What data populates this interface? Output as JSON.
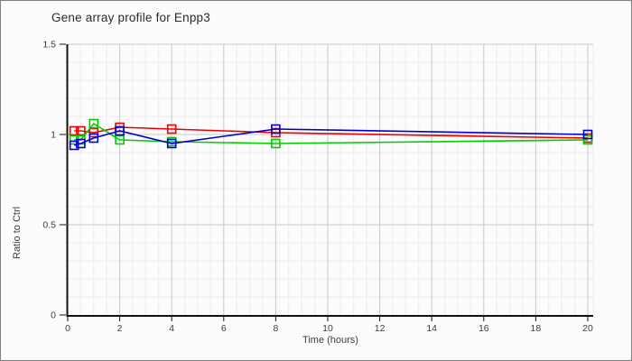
{
  "window": {
    "title": "Gene array profile for Enpp3"
  },
  "labels": {
    "title": "Gene array profile for Enpp3",
    "xlabel": "Time (hours)",
    "ylabel": "Ratio to Ctrl"
  },
  "chart_data": {
    "type": "line",
    "title": "Gene array profile for Enpp3",
    "xlabel": "Time (hours)",
    "ylabel": "Ratio to Ctrl",
    "xlim": [
      0,
      20.2
    ],
    "ylim": [
      0,
      1.5
    ],
    "x_major_ticks": [
      "0",
      "2",
      "4",
      "6",
      "8",
      "10",
      "12",
      "14",
      "16",
      "18",
      "20"
    ],
    "x_major_values": [
      0,
      2,
      4,
      6,
      8,
      10,
      12,
      14,
      16,
      18,
      20
    ],
    "x_minor_step": 0.5,
    "y_major_ticks": [
      "0",
      "0.5",
      "1",
      "1.5"
    ],
    "y_major_values": [
      0,
      0.5,
      1,
      1.5
    ],
    "y_minor_step": 0.1,
    "grid": true,
    "legend_position": "none",
    "marker": "open-square",
    "x": [
      0.25,
      0.5,
      1,
      2,
      4,
      8,
      20
    ],
    "series": [
      {
        "name": "red",
        "color": "#ee0000",
        "values": [
          1.02,
          1.02,
          1.01,
          1.04,
          1.03,
          1.01,
          0.98
        ]
      },
      {
        "name": "green",
        "color": "#00cc00",
        "values": [
          0.97,
          0.97,
          1.06,
          0.97,
          0.96,
          0.95,
          0.97
        ]
      },
      {
        "name": "blue",
        "color": "#0000cc",
        "values": [
          0.94,
          0.95,
          0.98,
          1.02,
          0.95,
          1.03,
          1.0
        ]
      }
    ],
    "colors": {
      "axis": "#111111",
      "grid_major": "#c8c8c8",
      "grid_minor": "#ececec",
      "background": "#fcfcfc",
      "tick_text": "#3c3c3c"
    }
  }
}
